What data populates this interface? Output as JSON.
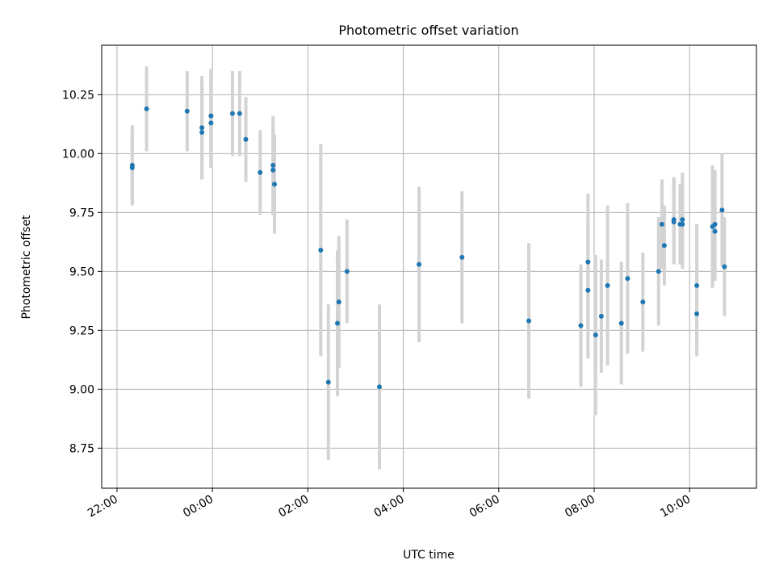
{
  "chart_data": {
    "type": "scatter",
    "title": "Photometric offset variation",
    "xlabel": "UTC time",
    "ylabel": "Photometric offset",
    "x_ticks": [
      "22:00",
      "00:00",
      "02:00",
      "04:00",
      "06:00",
      "08:00",
      "10:00"
    ],
    "x_tick_hours": [
      -2,
      0,
      2,
      4,
      6,
      8,
      10
    ],
    "y_ticks": [
      "8.75",
      "9.00",
      "9.25",
      "9.50",
      "9.75",
      "10.00",
      "10.25"
    ],
    "y_tick_values": [
      8.75,
      9.0,
      9.25,
      9.5,
      9.75,
      10.0,
      10.25
    ],
    "xlim_hours": [
      -2.32,
      11.4
    ],
    "ylim": [
      8.58,
      10.46
    ],
    "x_unit": "hours relative to 00:00 UTC",
    "grid": true,
    "colors": {
      "point": "#1f77b4",
      "errorbar": "#d3d3d3",
      "grid": "#b0b0b0"
    },
    "points": [
      {
        "x": -1.68,
        "y": 9.95,
        "err": 0.17
      },
      {
        "x": -1.68,
        "y": 9.94,
        "err": 0.15
      },
      {
        "x": -1.38,
        "y": 10.19,
        "err": 0.18
      },
      {
        "x": -0.53,
        "y": 10.18,
        "err": 0.17
      },
      {
        "x": -0.22,
        "y": 10.11,
        "err": 0.22
      },
      {
        "x": -0.22,
        "y": 10.09,
        "err": 0.2
      },
      {
        "x": -0.03,
        "y": 10.16,
        "err": 0.2
      },
      {
        "x": -0.03,
        "y": 10.13,
        "err": 0.19
      },
      {
        "x": 0.42,
        "y": 10.17,
        "err": 0.18
      },
      {
        "x": 0.57,
        "y": 10.17,
        "err": 0.18
      },
      {
        "x": 0.7,
        "y": 10.06,
        "err": 0.18
      },
      {
        "x": 1.0,
        "y": 9.92,
        "err": 0.18
      },
      {
        "x": 1.27,
        "y": 9.95,
        "err": 0.21
      },
      {
        "x": 1.27,
        "y": 9.93,
        "err": 0.19
      },
      {
        "x": 1.3,
        "y": 9.87,
        "err": 0.21
      },
      {
        "x": 2.27,
        "y": 9.59,
        "err": 0.45
      },
      {
        "x": 2.43,
        "y": 9.03,
        "err": 0.33
      },
      {
        "x": 2.62,
        "y": 9.28,
        "err": 0.31
      },
      {
        "x": 2.65,
        "y": 9.37,
        "err": 0.28
      },
      {
        "x": 2.82,
        "y": 9.5,
        "err": 0.22
      },
      {
        "x": 3.5,
        "y": 9.01,
        "err": 0.35
      },
      {
        "x": 4.33,
        "y": 9.53,
        "err": 0.33
      },
      {
        "x": 5.23,
        "y": 9.56,
        "err": 0.28
      },
      {
        "x": 6.63,
        "y": 9.29,
        "err": 0.33
      },
      {
        "x": 7.72,
        "y": 9.27,
        "err": 0.26
      },
      {
        "x": 7.87,
        "y": 9.54,
        "err": 0.29
      },
      {
        "x": 7.87,
        "y": 9.42,
        "err": 0.29
      },
      {
        "x": 8.03,
        "y": 9.23,
        "err": 0.34
      },
      {
        "x": 8.15,
        "y": 9.31,
        "err": 0.24
      },
      {
        "x": 8.28,
        "y": 9.44,
        "err": 0.34
      },
      {
        "x": 8.57,
        "y": 9.28,
        "err": 0.26
      },
      {
        "x": 8.7,
        "y": 9.47,
        "err": 0.32
      },
      {
        "x": 9.02,
        "y": 9.37,
        "err": 0.21
      },
      {
        "x": 9.35,
        "y": 9.5,
        "err": 0.23
      },
      {
        "x": 9.42,
        "y": 9.7,
        "err": 0.19
      },
      {
        "x": 9.47,
        "y": 9.61,
        "err": 0.17
      },
      {
        "x": 9.67,
        "y": 9.72,
        "err": 0.18
      },
      {
        "x": 9.67,
        "y": 9.71,
        "err": 0.18
      },
      {
        "x": 9.8,
        "y": 9.7,
        "err": 0.17
      },
      {
        "x": 9.85,
        "y": 9.72,
        "err": 0.2
      },
      {
        "x": 9.85,
        "y": 9.7,
        "err": 0.19
      },
      {
        "x": 10.15,
        "y": 9.44,
        "err": 0.26
      },
      {
        "x": 10.15,
        "y": 9.32,
        "err": 0.18
      },
      {
        "x": 10.48,
        "y": 9.69,
        "err": 0.26
      },
      {
        "x": 10.53,
        "y": 9.7,
        "err": 0.23
      },
      {
        "x": 10.53,
        "y": 9.67,
        "err": 0.21
      },
      {
        "x": 10.68,
        "y": 9.76,
        "err": 0.24
      },
      {
        "x": 10.73,
        "y": 9.52,
        "err": 0.21
      }
    ]
  }
}
